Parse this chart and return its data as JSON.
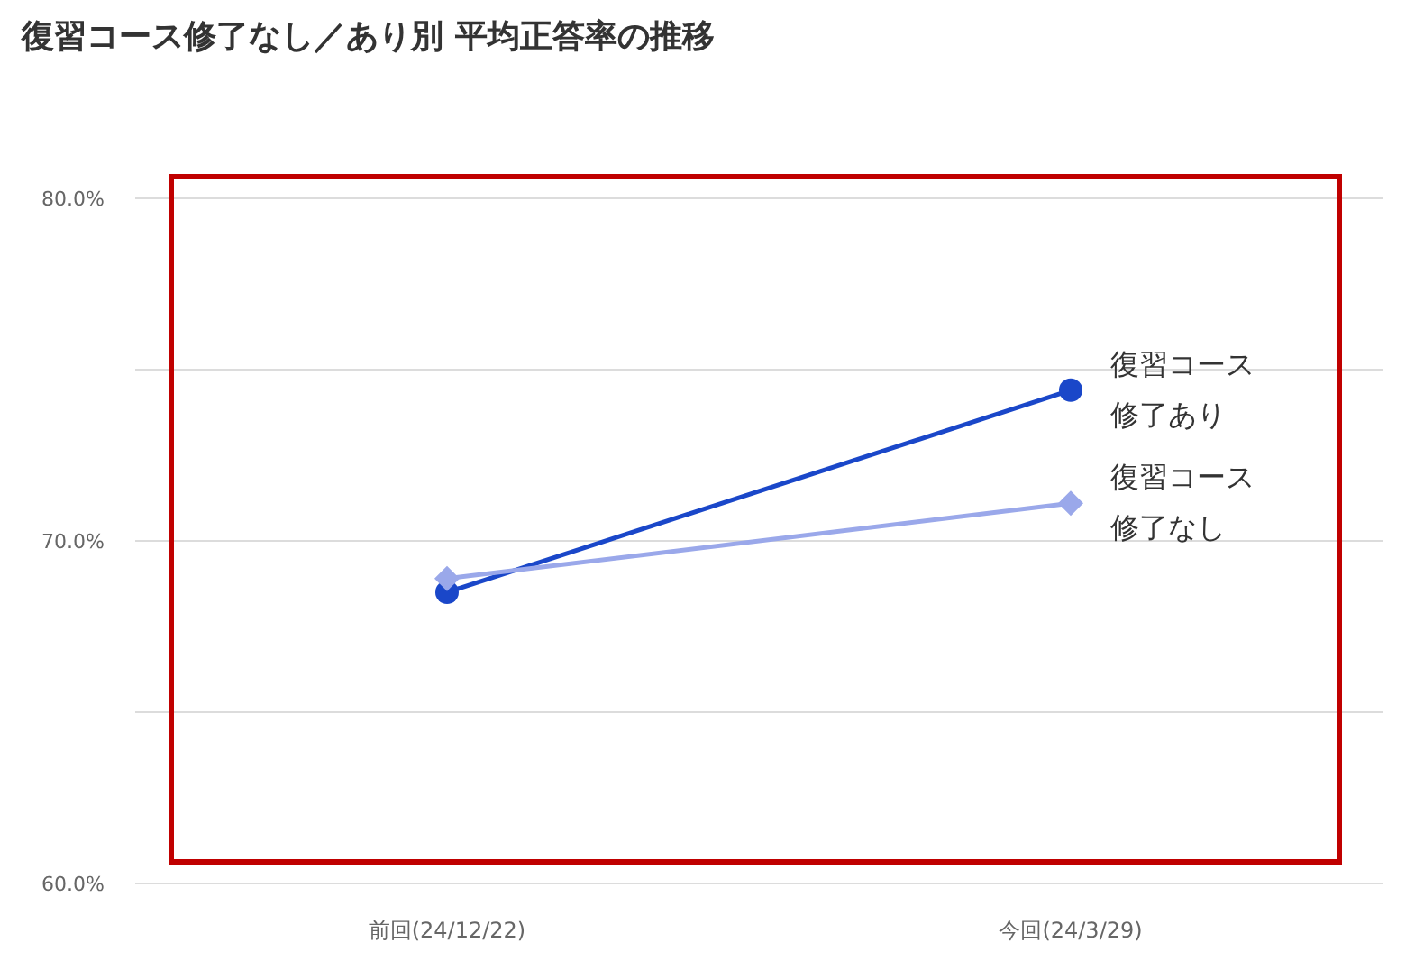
{
  "chart_data": {
    "type": "line",
    "title": "復習コース修了なし／あり別 平均正答率の推移",
    "categories": [
      "前回(24/12/22)",
      "今回(24/3/29)"
    ],
    "series": [
      {
        "name": "復習コース修了あり",
        "color": "#1a47c9",
        "values": [
          68.5,
          74.4
        ],
        "marker": "circle"
      },
      {
        "name": "復習コース修了なし",
        "color": "#9aa8ea",
        "values": [
          68.9,
          71.1
        ],
        "marker": "diamond"
      }
    ],
    "ylim": [
      60,
      80
    ],
    "yticks": [
      {
        "value": 60,
        "label": "60.0%"
      },
      {
        "value": 65,
        "label": null
      },
      {
        "value": 70,
        "label": "70.0%"
      },
      {
        "value": 75,
        "label": null
      },
      {
        "value": 80,
        "label": "80.0%"
      }
    ],
    "grid": "y",
    "line_style": "solid"
  }
}
